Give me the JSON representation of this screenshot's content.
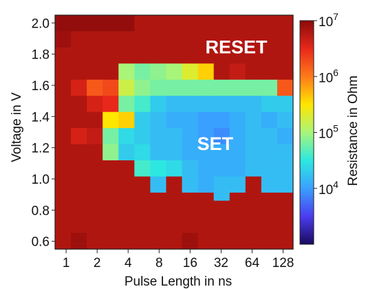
{
  "chart_data": {
    "type": "heatmap",
    "xlabel": "Pulse Length in ns",
    "ylabel": "Voltage in V",
    "colorbar_label": "Resistance in Ohm",
    "x_tick_labels": [
      "1",
      "2",
      "4",
      "8",
      "16",
      "32",
      "64",
      "128"
    ],
    "y_tick_labels": [
      "2.0",
      "1.8",
      "1.6",
      "1.4",
      "1.2",
      "1.0",
      "0.8",
      "0.6"
    ],
    "x_scale": "log2",
    "x_range_ns": [
      0.78,
      160
    ],
    "y_range_V": [
      0.55,
      2.05
    ],
    "voltage_rows_V": [
      2.0,
      1.95,
      1.9,
      1.85,
      1.8,
      1.75,
      1.7,
      1.65,
      1.6,
      1.55,
      1.5,
      1.45,
      1.4,
      1.35,
      1.3,
      1.25,
      1.2,
      1.15,
      1.1,
      1.05,
      1.0,
      0.95,
      0.9,
      0.85,
      0.8,
      0.75,
      0.7,
      0.65,
      0.6
    ],
    "pulse_length_columns": [
      "1",
      "1.4",
      "2",
      "2.8",
      "4",
      "5.6",
      "8",
      "11",
      "16",
      "23",
      "32",
      "45",
      "64",
      "90",
      "128"
    ],
    "colorbar": {
      "scale": "log",
      "range": [
        1000,
        10000000
      ],
      "tick_labels": [
        "10^7",
        "10^6",
        "10^5",
        "10^4"
      ],
      "tick_values_log10": [
        7,
        6,
        5,
        4
      ],
      "colors": [
        "#1a0a5e",
        "#4b3cf0",
        "#3aa0ff",
        "#2de8e0",
        "#a8f57a",
        "#ffe600",
        "#ff7a1a",
        "#e8281a",
        "#8a0a0a"
      ]
    },
    "regions": [
      {
        "label": "RESET",
        "approx_pulse_ns": 45,
        "approx_voltage_V": 1.85
      },
      {
        "label": "SET",
        "approx_pulse_ns": 28,
        "approx_voltage_V": 1.23
      }
    ],
    "log10_resistance_rows": [
      [
        6.95,
        6.95,
        6.95,
        6.95,
        6.95,
        6.8,
        6.8,
        6.8,
        6.8,
        6.8,
        6.8,
        6.8,
        6.8,
        6.8,
        6.8
      ],
      [
        6.95,
        6.95,
        6.95,
        6.95,
        6.95,
        6.8,
        6.8,
        6.8,
        6.8,
        6.8,
        6.8,
        6.8,
        6.8,
        6.8,
        6.8
      ],
      [
        6.9,
        6.8,
        6.8,
        6.8,
        6.8,
        6.8,
        6.8,
        6.8,
        6.8,
        6.8,
        6.8,
        6.8,
        6.8,
        6.8,
        6.8
      ],
      [
        6.9,
        6.8,
        6.8,
        6.8,
        6.8,
        6.8,
        6.8,
        6.8,
        6.8,
        6.8,
        6.8,
        6.8,
        6.8,
        6.8,
        6.8
      ],
      [
        6.8,
        6.8,
        6.8,
        6.8,
        6.8,
        6.8,
        6.8,
        6.8,
        6.8,
        6.8,
        6.8,
        6.8,
        6.8,
        6.8,
        6.8
      ],
      [
        6.8,
        6.8,
        6.8,
        6.8,
        6.8,
        6.8,
        6.8,
        6.8,
        6.8,
        6.8,
        6.8,
        6.8,
        6.8,
        6.8,
        6.8
      ],
      [
        6.8,
        6.8,
        6.8,
        6.8,
        5.0,
        4.8,
        4.9,
        5.0,
        5.3,
        5.6,
        6.8,
        6.7,
        6.8,
        6.8,
        6.8
      ],
      [
        6.8,
        6.8,
        6.8,
        6.8,
        5.0,
        4.8,
        4.9,
        5.0,
        5.3,
        5.6,
        6.8,
        6.7,
        6.8,
        6.8,
        6.8
      ],
      [
        6.8,
        6.6,
        6.2,
        6.3,
        5.2,
        4.9,
        4.8,
        4.8,
        4.8,
        4.8,
        4.8,
        4.8,
        4.8,
        4.8,
        6.2
      ],
      [
        6.8,
        6.6,
        6.2,
        6.3,
        5.2,
        4.9,
        4.8,
        4.8,
        4.8,
        4.8,
        4.8,
        4.8,
        4.8,
        4.8,
        6.2
      ],
      [
        6.8,
        6.8,
        6.6,
        6.5,
        4.8,
        4.6,
        4.3,
        4.2,
        4.2,
        4.2,
        4.2,
        4.2,
        4.2,
        4.3,
        4.3
      ],
      [
        6.8,
        6.8,
        6.6,
        6.5,
        4.8,
        4.6,
        4.3,
        4.2,
        4.2,
        4.2,
        4.2,
        4.2,
        4.2,
        4.3,
        4.3
      ],
      [
        6.8,
        6.8,
        6.8,
        5.5,
        5.6,
        4.3,
        4.2,
        4.1,
        4.1,
        4.0,
        4.0,
        4.1,
        4.2,
        4.1,
        4.2
      ],
      [
        6.8,
        6.8,
        6.8,
        5.5,
        5.6,
        4.3,
        4.2,
        4.1,
        4.1,
        4.0,
        4.0,
        4.1,
        4.2,
        4.1,
        4.2
      ],
      [
        6.8,
        6.6,
        6.7,
        4.8,
        4.4,
        4.3,
        4.2,
        4.2,
        4.1,
        4.0,
        3.9,
        4.1,
        4.2,
        4.2,
        4.1
      ],
      [
        6.8,
        6.6,
        6.7,
        4.8,
        4.4,
        4.3,
        4.2,
        4.2,
        4.1,
        4.0,
        3.9,
        4.1,
        4.2,
        4.2,
        4.1
      ],
      [
        6.8,
        6.8,
        6.8,
        4.9,
        4.3,
        4.4,
        4.2,
        4.2,
        4.1,
        4.1,
        4.1,
        4.1,
        4.2,
        4.2,
        4.2
      ],
      [
        6.8,
        6.8,
        6.8,
        4.9,
        4.3,
        4.4,
        4.2,
        4.2,
        4.1,
        4.1,
        4.1,
        4.1,
        4.2,
        4.2,
        4.2
      ],
      [
        6.8,
        6.8,
        6.8,
        6.8,
        6.8,
        4.6,
        4.5,
        4.4,
        4.2,
        4.1,
        4.1,
        4.1,
        4.2,
        4.2,
        4.2
      ],
      [
        6.8,
        6.8,
        6.8,
        6.8,
        6.8,
        4.6,
        4.5,
        4.4,
        4.2,
        4.1,
        4.1,
        4.1,
        4.2,
        4.2,
        4.2
      ],
      [
        6.8,
        6.8,
        6.8,
        6.8,
        6.8,
        6.8,
        4.2,
        6.8,
        4.2,
        4.1,
        4.2,
        4.2,
        6.8,
        4.2,
        4.2
      ],
      [
        6.8,
        6.8,
        6.8,
        6.8,
        6.8,
        6.8,
        4.2,
        6.8,
        4.2,
        4.1,
        4.2,
        4.2,
        6.8,
        4.2,
        4.2
      ],
      [
        6.8,
        6.8,
        6.8,
        6.8,
        6.8,
        6.8,
        6.8,
        6.8,
        6.8,
        6.8,
        4.2,
        6.8,
        6.8,
        6.8,
        6.8
      ],
      [
        6.8,
        6.8,
        6.8,
        6.8,
        6.8,
        6.8,
        6.8,
        6.8,
        6.8,
        6.8,
        6.8,
        6.8,
        6.8,
        6.8,
        6.8
      ],
      [
        6.8,
        6.8,
        6.8,
        6.8,
        6.8,
        6.8,
        6.8,
        6.8,
        6.8,
        6.8,
        6.8,
        6.8,
        6.8,
        6.8,
        6.8
      ],
      [
        6.8,
        6.8,
        6.8,
        6.8,
        6.8,
        6.8,
        6.8,
        6.8,
        6.8,
        6.8,
        6.8,
        6.8,
        6.8,
        6.8,
        6.8
      ],
      [
        6.8,
        6.8,
        6.8,
        6.8,
        6.8,
        6.8,
        6.8,
        6.8,
        6.8,
        6.8,
        6.8,
        6.8,
        6.8,
        6.8,
        6.8
      ],
      [
        6.8,
        6.9,
        6.8,
        6.8,
        6.8,
        6.8,
        6.8,
        6.8,
        6.9,
        6.8,
        6.8,
        6.8,
        6.8,
        6.8,
        6.8
      ],
      [
        6.8,
        6.9,
        6.8,
        6.8,
        6.8,
        6.8,
        6.8,
        6.8,
        6.9,
        6.8,
        6.8,
        6.8,
        6.8,
        6.8,
        6.8
      ]
    ]
  }
}
